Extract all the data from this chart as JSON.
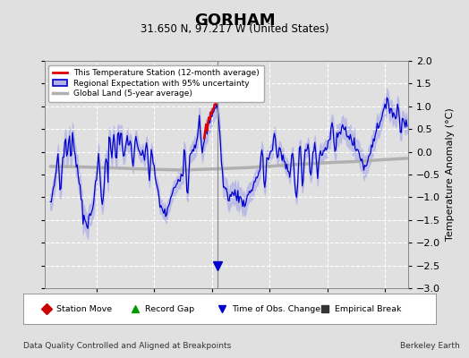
{
  "title": "GORHAM",
  "subtitle": "31.650 N, 97.217 W (United States)",
  "ylabel": "Temperature Anomaly (°C)",
  "xlabel_left": "Data Quality Controlled and Aligned at Breakpoints",
  "xlabel_right": "Berkeley Earth",
  "ylim": [
    -3,
    2
  ],
  "xlim": [
    1895.5,
    1927.0
  ],
  "yticks": [
    -3,
    -2.5,
    -2,
    -1.5,
    -1,
    -0.5,
    0,
    0.5,
    1,
    1.5,
    2
  ],
  "xticks": [
    1900,
    1905,
    1910,
    1915,
    1920,
    1925
  ],
  "bg_color": "#e0e0e0",
  "grid_color": "#ffffff",
  "station_line_color": "#dd0000",
  "regional_line_color": "#0000cc",
  "regional_fill_color": "#b0b0e8",
  "global_line_color": "#b0b0b0",
  "obs_change_year": 1910.5,
  "legend_entries": [
    "This Temperature Station (12-month average)",
    "Regional Expectation with 95% uncertainty",
    "Global Land (5-year average)"
  ],
  "bottom_legend": [
    {
      "marker": "D",
      "color": "#cc0000",
      "label": "Station Move"
    },
    {
      "marker": "^",
      "color": "#009900",
      "label": "Record Gap"
    },
    {
      "marker": "v",
      "color": "#0000cc",
      "label": "Time of Obs. Change"
    },
    {
      "marker": "s",
      "color": "#333333",
      "label": "Empirical Break"
    }
  ],
  "time_of_obs_change_x": 1910.5
}
